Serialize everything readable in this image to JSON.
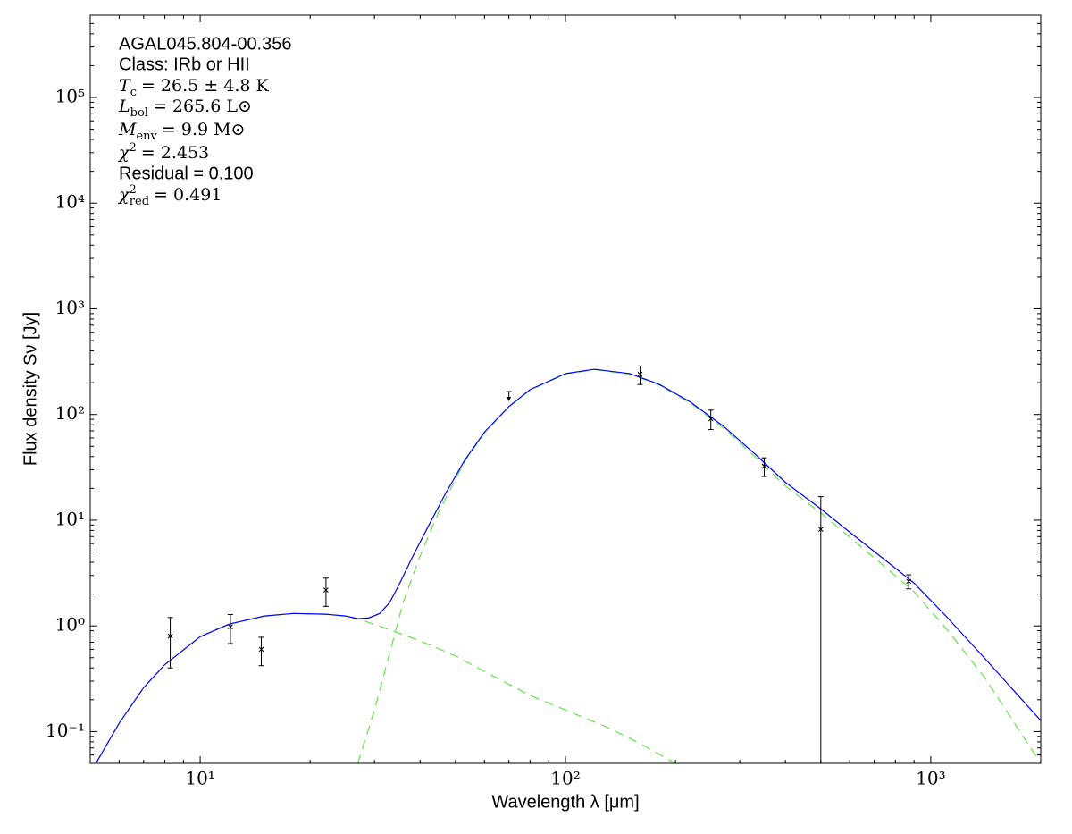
{
  "chart_data": {
    "type": "line",
    "xlabel": "Wavelength λ [μm]",
    "ylabel": "Flux density Sν [Jy]",
    "xscale": "log",
    "yscale": "log",
    "xlim": [
      5,
      2000
    ],
    "ylim": [
      0.05,
      600000
    ],
    "xticks": [
      {
        "value": 10,
        "label": "10¹"
      },
      {
        "value": 100,
        "label": "10²"
      },
      {
        "value": 1000,
        "label": "10³"
      }
    ],
    "yticks": [
      {
        "value": 0.1,
        "label": "10⁻¹"
      },
      {
        "value": 1,
        "label": "10⁰"
      },
      {
        "value": 10,
        "label": "10¹"
      },
      {
        "value": 100,
        "label": "10²"
      },
      {
        "value": 1000,
        "label": "10³"
      },
      {
        "value": 10000,
        "label": "10⁴"
      },
      {
        "value": 100000,
        "label": "10⁵"
      }
    ],
    "minor_ticks": true,
    "annotations": [
      "AGAL045.804-00.356",
      "Class: IRb or HII",
      {
        "symbol": "T",
        "sub": "c",
        "rest": "= 26.5 ± 4.8 K"
      },
      {
        "symbol": "L",
        "sub": "bol",
        "rest": "= 265.6 L⊙"
      },
      {
        "symbol": "M",
        "sub": "env",
        "rest": "= 9.9 M⊙"
      },
      {
        "symbol": "χ",
        "sup": "2",
        "rest": "= 2.453"
      },
      "Residual = 0.100",
      {
        "symbol": "χ",
        "sup": "2",
        "sub": "red",
        "rest": "= 0.491"
      }
    ],
    "series": [
      {
        "style": "dashed",
        "color": "#66e04a",
        "x": [
          5.2,
          6,
          7,
          8,
          10,
          12,
          15,
          18,
          22,
          25,
          27,
          33,
          40,
          50,
          60,
          80,
          100,
          130,
          160,
          200
        ],
        "values": [
          0.051,
          0.12,
          0.26,
          0.43,
          0.79,
          1.04,
          1.24,
          1.31,
          1.29,
          1.24,
          1.17,
          0.92,
          0.72,
          0.52,
          0.37,
          0.22,
          0.16,
          0.11,
          0.077,
          0.05
        ]
      },
      {
        "style": "dashed",
        "color": "#66e04a",
        "x": [
          27,
          30,
          33,
          36,
          40,
          45,
          53,
          60,
          70,
          80,
          100,
          120,
          150,
          180,
          220,
          270,
          330,
          400,
          500,
          600,
          750,
          900,
          1100,
          1400,
          2000
        ],
        "values": [
          0.05,
          0.16,
          0.55,
          1.7,
          4.6,
          12,
          36,
          67,
          118,
          170,
          242,
          266,
          241,
          191,
          128,
          75,
          40,
          21,
          11.7,
          6.9,
          3.6,
          2.1,
          0.95,
          0.33,
          0.05
        ]
      },
      {
        "style": "solid",
        "color": "#0000ff",
        "x": [
          5.2,
          6,
          7,
          8,
          10,
          12,
          15,
          18,
          22,
          25,
          27,
          29,
          31,
          33,
          35,
          38,
          42,
          47,
          53,
          60,
          70,
          80,
          100,
          120,
          150,
          180,
          220,
          270,
          330,
          400,
          500,
          600,
          750,
          900,
          1100,
          1400,
          2000
        ],
        "values": [
          0.051,
          0.12,
          0.26,
          0.43,
          0.79,
          1.04,
          1.24,
          1.31,
          1.29,
          1.24,
          1.17,
          1.19,
          1.31,
          1.66,
          2.44,
          4.4,
          8.6,
          18,
          37,
          68,
          119,
          172,
          244,
          268,
          244,
          194,
          131,
          78,
          42.4,
          22.8,
          12.8,
          7.7,
          4.2,
          2.54,
          1.24,
          0.5,
          0.127
        ]
      },
      {
        "style": "points",
        "color": "#000000",
        "x": [
          8.28,
          12.1,
          14.7,
          22.1,
          70,
          160,
          250,
          350,
          500,
          870
        ],
        "values": [
          0.8,
          0.98,
          0.6,
          2.18,
          165,
          240,
          91,
          32.4,
          8.2,
          2.64
        ],
        "errors": [
          0.4,
          0.3,
          0.18,
          0.65,
          null,
          48,
          19,
          6.5,
          8.5,
          0.4
        ],
        "upper_limit": [
          false,
          false,
          false,
          false,
          true,
          false,
          false,
          false,
          false,
          false
        ]
      }
    ]
  }
}
